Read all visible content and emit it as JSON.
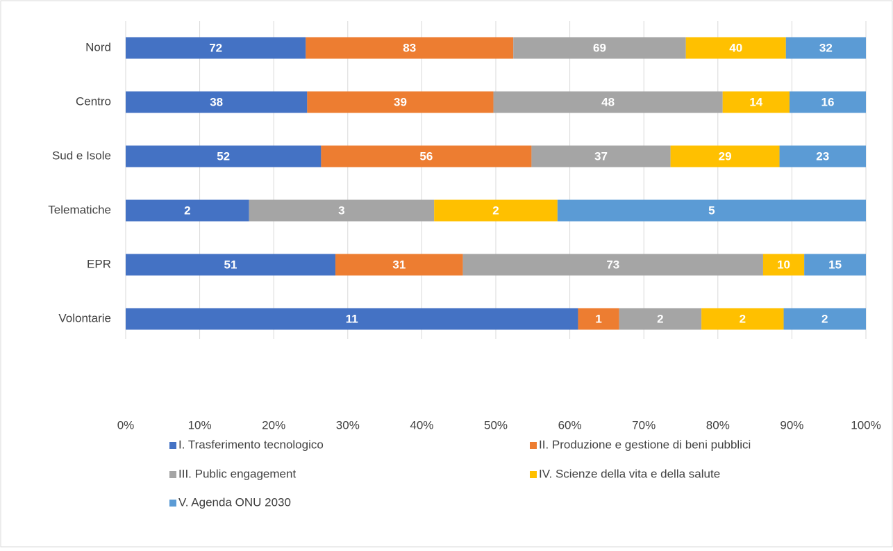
{
  "chart_data": {
    "type": "bar",
    "orientation": "horizontal",
    "stacked": "percent",
    "categories": [
      "Nord",
      "Centro",
      "Sud e Isole",
      "Telematiche",
      "EPR",
      "Volontarie"
    ],
    "series": [
      {
        "name": "I. Trasferimento tecnologico",
        "color": "#4472c4",
        "values": [
          72,
          38,
          52,
          2,
          51,
          11
        ]
      },
      {
        "name": "II. Produzione e gestione di beni pubblici",
        "color": "#ed7d31",
        "values": [
          83,
          39,
          56,
          null,
          31,
          1
        ]
      },
      {
        "name": "III. Public engagement",
        "color": "#a5a5a5",
        "values": [
          69,
          48,
          37,
          3,
          73,
          2
        ]
      },
      {
        "name": "IV. Scienze della vita e della salute",
        "color": "#ffc000",
        "values": [
          40,
          14,
          29,
          2,
          10,
          2
        ]
      },
      {
        "name": "V. Agenda ONU 2030",
        "color": "#5b9bd5",
        "values": [
          32,
          16,
          23,
          5,
          15,
          2
        ]
      }
    ],
    "xlim": [
      0,
      100
    ],
    "xticks": [
      {
        "value": 0,
        "label": "0%"
      },
      {
        "value": 10,
        "label": "10%"
      },
      {
        "value": 20,
        "label": "20%"
      },
      {
        "value": 30,
        "label": "30%"
      },
      {
        "value": 40,
        "label": "40%"
      },
      {
        "value": 50,
        "label": "50%"
      },
      {
        "value": 60,
        "label": "60%"
      },
      {
        "value": 70,
        "label": "70%"
      },
      {
        "value": 80,
        "label": "80%"
      },
      {
        "value": 90,
        "label": "90%"
      },
      {
        "value": 100,
        "label": "100%"
      }
    ],
    "grid": true,
    "legend": "bottom"
  }
}
